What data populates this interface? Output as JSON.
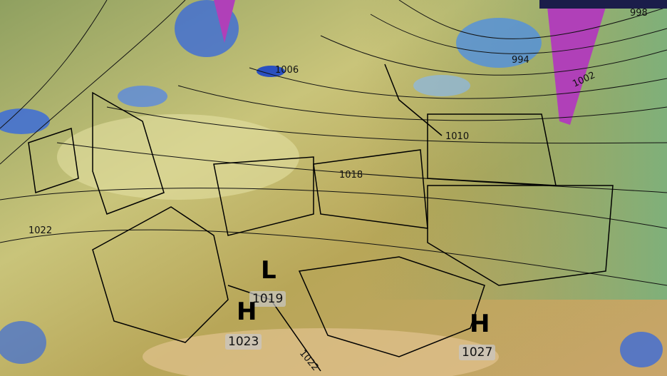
{
  "map": {
    "isobar_labels": [
      "998",
      "994",
      "1002",
      "1006",
      "1010",
      "1018",
      "1022",
      "1022"
    ],
    "pressure_centers": [
      {
        "type": "L",
        "value": "1019"
      },
      {
        "type": "H",
        "value": "1023"
      },
      {
        "type": "H",
        "value": "1027"
      }
    ],
    "colors": {
      "land_low": "#b5a84e",
      "land_high": "#c8a060",
      "sea": "#c9c98a",
      "east_green": "#7fa86a",
      "precip_blue": "#3c6cd8",
      "precip_purple": "#b040b8",
      "isobar": "#111111"
    }
  }
}
